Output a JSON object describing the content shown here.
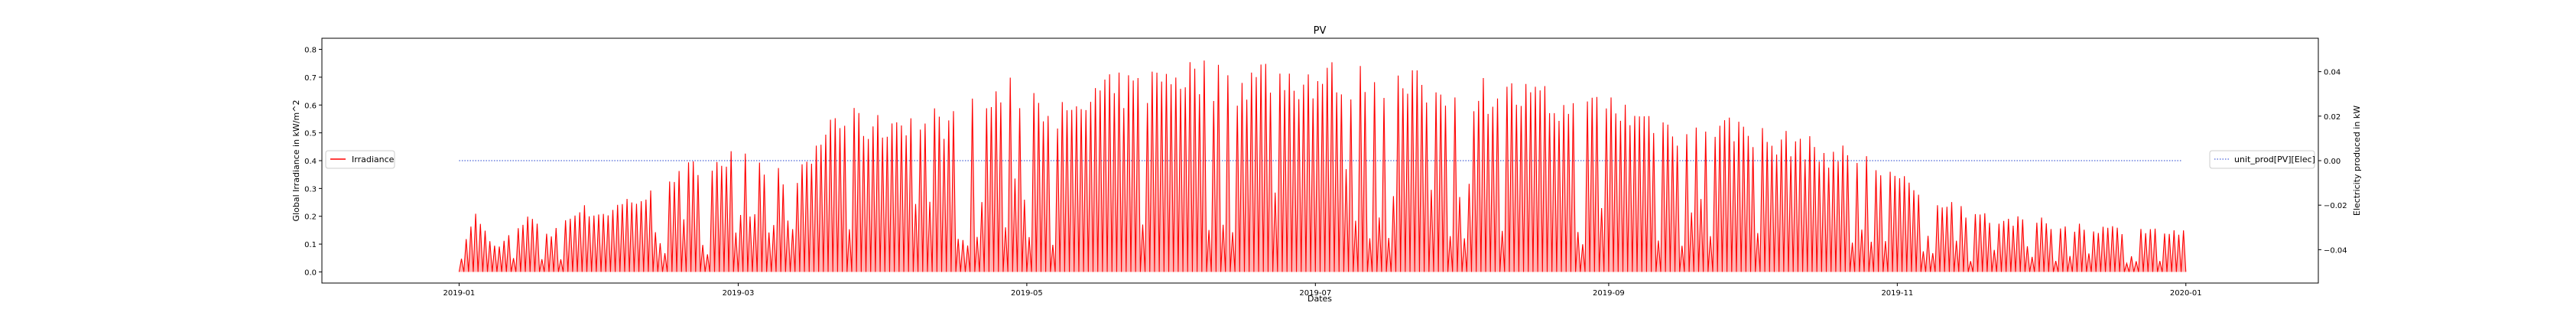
{
  "chart_data": {
    "type": "line",
    "title": "PV",
    "xlabel": "Dates",
    "ylabel_left": "Global Irradiance in kW/m^2",
    "ylabel_right": "Electricity produced in kW",
    "x_tick_labels": [
      "2019-01",
      "2019-03",
      "2019-05",
      "2019-07",
      "2019-09",
      "2019-11",
      "2020-01"
    ],
    "x_range": [
      "2018-12-03",
      "2020-01-29"
    ],
    "y_left_range": [
      -0.04,
      0.84
    ],
    "y_left_ticks": [
      "0.0",
      "0.1",
      "0.2",
      "0.3",
      "0.4",
      "0.5",
      "0.6",
      "0.7",
      "0.8"
    ],
    "y_right_range": [
      -0.055,
      0.055
    ],
    "y_right_ticks": [
      "−0.04",
      "−0.02",
      "0.00",
      "0.02",
      "0.04"
    ],
    "legend_left": {
      "label": "Irradiance",
      "placement": "center-left",
      "color": "#ff0000"
    },
    "legend_right": {
      "label": "unit_prod[PV][Elec]",
      "placement": "center-right",
      "color": "#1f3fcf"
    },
    "series": [
      {
        "name": "Irradiance",
        "axis": "left",
        "style": "red line, one peak per day, returning to 0 at night",
        "color": "#ff0000",
        "daily_peaks_estimated": [
          [
            "2019-01-01",
            0.1
          ],
          [
            "2019-01-04",
            0.22
          ],
          [
            "2019-01-08",
            0.1
          ],
          [
            "2019-01-12",
            0.15
          ],
          [
            "2019-01-16",
            0.22
          ],
          [
            "2019-01-20",
            0.14
          ],
          [
            "2019-01-25",
            0.25
          ],
          [
            "2019-01-31",
            0.23
          ],
          [
            "2019-02-05",
            0.28
          ],
          [
            "2019-02-10",
            0.3
          ],
          [
            "2019-02-13",
            0.38
          ],
          [
            "2019-02-17",
            0.4
          ],
          [
            "2019-02-21",
            0.41
          ],
          [
            "2019-02-25",
            0.45
          ],
          [
            "2019-02-28",
            0.44
          ],
          [
            "2019-03-05",
            0.42
          ],
          [
            "2019-03-10",
            0.39
          ],
          [
            "2019-03-15",
            0.4
          ],
          [
            "2019-03-20",
            0.6
          ],
          [
            "2019-03-25",
            0.59
          ],
          [
            "2019-03-30",
            0.57
          ],
          [
            "2019-04-05",
            0.61
          ],
          [
            "2019-04-10",
            0.6
          ],
          [
            "2019-04-15",
            0.59
          ],
          [
            "2019-04-20",
            0.64
          ],
          [
            "2019-04-25",
            0.69
          ],
          [
            "2019-04-30",
            0.72
          ],
          [
            "2019-05-05",
            0.65
          ],
          [
            "2019-05-10",
            0.6
          ],
          [
            "2019-05-15",
            0.7
          ],
          [
            "2019-05-20",
            0.72
          ],
          [
            "2019-05-25",
            0.73
          ],
          [
            "2019-05-31",
            0.79
          ],
          [
            "2019-06-05",
            0.78
          ],
          [
            "2019-06-10",
            0.76
          ],
          [
            "2019-06-15",
            0.74
          ],
          [
            "2019-06-20",
            0.79
          ],
          [
            "2019-06-25",
            0.77
          ],
          [
            "2019-06-30",
            0.76
          ],
          [
            "2019-07-05",
            0.77
          ],
          [
            "2019-07-10",
            0.76
          ],
          [
            "2019-07-15",
            0.74
          ],
          [
            "2019-07-20",
            0.73
          ],
          [
            "2019-07-25",
            0.73
          ],
          [
            "2019-07-31",
            0.72
          ],
          [
            "2019-08-05",
            0.71
          ],
          [
            "2019-08-10",
            0.7
          ],
          [
            "2019-08-15",
            0.69
          ],
          [
            "2019-08-20",
            0.66
          ],
          [
            "2019-08-25",
            0.62
          ],
          [
            "2019-08-31",
            0.67
          ],
          [
            "2019-09-05",
            0.62
          ],
          [
            "2019-09-10",
            0.6
          ],
          [
            "2019-09-15",
            0.55
          ],
          [
            "2019-09-20",
            0.59
          ],
          [
            "2019-09-25",
            0.57
          ],
          [
            "2019-09-30",
            0.57
          ],
          [
            "2019-10-05",
            0.5
          ],
          [
            "2019-10-10",
            0.52
          ],
          [
            "2019-10-15",
            0.47
          ],
          [
            "2019-10-20",
            0.46
          ],
          [
            "2019-10-25",
            0.43
          ],
          [
            "2019-10-31",
            0.38
          ],
          [
            "2019-11-05",
            0.3
          ],
          [
            "2019-11-10",
            0.28
          ],
          [
            "2019-11-15",
            0.24
          ],
          [
            "2019-11-20",
            0.22
          ],
          [
            "2019-11-25",
            0.2
          ],
          [
            "2019-11-30",
            0.2
          ],
          [
            "2019-12-05",
            0.18
          ],
          [
            "2019-12-10",
            0.18
          ],
          [
            "2019-12-15",
            0.17
          ],
          [
            "2019-12-20",
            0.17
          ],
          [
            "2019-12-25",
            0.16
          ],
          [
            "2019-12-31",
            0.15
          ]
        ]
      },
      {
        "name": "unit_prod[PV][Elec]",
        "axis": "right",
        "style": "dotted blue line",
        "color": "#1f3fcf",
        "x": [
          "2019-01-01",
          "2019-12-31"
        ],
        "values": [
          0.0,
          0.0
        ]
      }
    ],
    "grid": false
  }
}
